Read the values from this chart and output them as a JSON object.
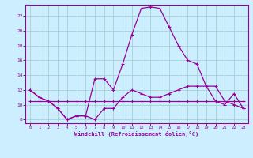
{
  "hours": [
    0,
    1,
    2,
    3,
    4,
    5,
    6,
    7,
    8,
    9,
    10,
    11,
    12,
    13,
    14,
    15,
    16,
    17,
    18,
    19,
    20,
    21,
    22,
    23
  ],
  "line_main": [
    12,
    11,
    10.5,
    9.5,
    8,
    8.5,
    8.5,
    13.5,
    13.5,
    12,
    15.5,
    19.5,
    23,
    23.2,
    23,
    20.5,
    18,
    16,
    15.5,
    12.5,
    10.5,
    10,
    11.5,
    9.5
  ],
  "line_temp": [
    12,
    11,
    10.5,
    9.5,
    8,
    8.5,
    8.5,
    8,
    9.5,
    9.5,
    11,
    12,
    11.5,
    11,
    11,
    11.5,
    12,
    12.5,
    12.5,
    12.5,
    12.5,
    10.5,
    10,
    9.5
  ],
  "line_flat": [
    10.5,
    10.5,
    10.5,
    10.5,
    10.5,
    10.5,
    10.5,
    10.5,
    10.5,
    10.5,
    10.5,
    10.5,
    10.5,
    10.5,
    10.5,
    10.5,
    10.5,
    10.5,
    10.5,
    10.5,
    10.5,
    10.5,
    10.5,
    10.5
  ],
  "line_color": "#990099",
  "bg_color": "#cceeff",
  "grid_color": "#99cccc",
  "xlabel": "Windchill (Refroidissement éolien,°C)",
  "xlim": [
    -0.5,
    23.5
  ],
  "ylim": [
    7.5,
    23.5
  ],
  "yticks": [
    8,
    10,
    12,
    14,
    16,
    18,
    20,
    22
  ],
  "xticks": [
    0,
    1,
    2,
    3,
    4,
    5,
    6,
    7,
    8,
    9,
    10,
    11,
    12,
    13,
    14,
    15,
    16,
    17,
    18,
    19,
    20,
    21,
    22,
    23
  ]
}
